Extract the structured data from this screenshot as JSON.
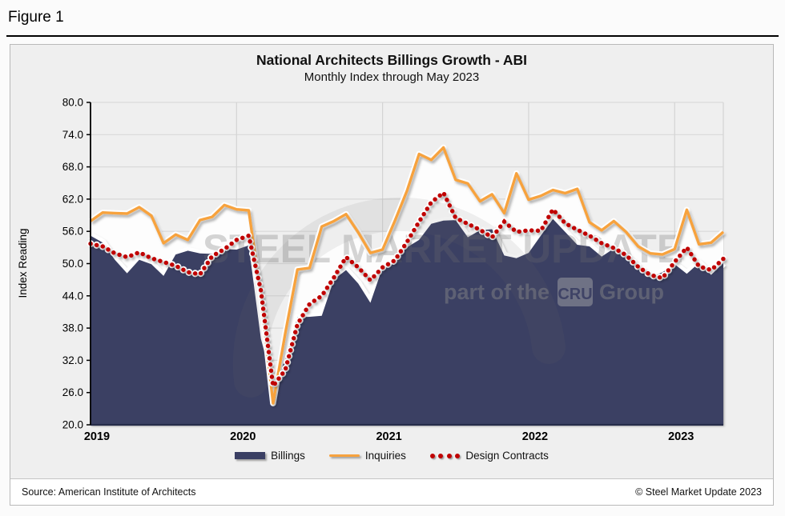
{
  "figure_label": "Figure 1",
  "chart": {
    "title": "National Architects Billings Growth - ABI",
    "subtitle": "Monthly Index through May 2023"
  },
  "chart_data": {
    "type": "area",
    "x_start": "Jan 2019",
    "x_end": "May 2023",
    "points_per_series": 53,
    "year_ticks": [
      "2019",
      "2020",
      "2021",
      "2022",
      "2023"
    ],
    "ylabel": "Index Reading",
    "ylim": [
      20,
      80
    ],
    "ytick_step": 6,
    "reference_line": 50,
    "grid": "on",
    "legend_position": "bottom",
    "series": [
      {
        "name": "Billings",
        "style": "area",
        "color": "#3a3f63",
        "values": [
          55.2,
          53.9,
          50.7,
          48.2,
          50.7,
          49.9,
          47.7,
          51.7,
          52.4,
          51.9,
          51.8,
          52.7,
          52.6,
          53.4,
          36.0,
          27.5,
          32.0,
          40.0,
          40.1,
          40.3,
          47.0,
          48.8,
          46.3,
          42.7,
          49.3,
          50.7,
          53.0,
          54.4,
          57.4,
          58.0,
          58.1,
          54.9,
          56.2,
          56.4,
          51.5,
          51.0,
          52.0,
          55.2,
          58.3,
          55.9,
          53.5,
          53.2,
          51.3,
          52.8,
          51.5,
          49.2,
          47.4,
          48.4,
          49.9,
          48.1,
          50.1,
          47.9,
          50.1
        ]
      },
      {
        "name": "Inquiries",
        "style": "line",
        "color": "#f7a23e",
        "area_fill": "#ffffff",
        "values": [
          57.9,
          59.5,
          59.4,
          59.3,
          60.5,
          58.9,
          53.8,
          55.4,
          54.4,
          58.1,
          58.7,
          60.9,
          60.1,
          59.9,
          44.0,
          24.0,
          37.0,
          48.9,
          49.2,
          56.9,
          57.9,
          59.2,
          55.8,
          52.0,
          52.6,
          57.9,
          63.5,
          70.4,
          69.3,
          71.6,
          65.6,
          64.9,
          61.6,
          62.9,
          59.4,
          66.8,
          61.9,
          62.6,
          63.7,
          63.1,
          63.9,
          57.7,
          56.2,
          57.9,
          55.9,
          53.2,
          51.9,
          51.7,
          52.7,
          60.0,
          53.6,
          53.9,
          55.9
        ]
      },
      {
        "name": "Design Contracts",
        "style": "dotted-line",
        "color": "#c00000",
        "values": [
          53.7,
          53.2,
          51.9,
          51.2,
          52.1,
          51.0,
          50.3,
          49.6,
          48.4,
          48.0,
          51.4,
          52.7,
          54.4,
          55.2,
          45.0,
          27.2,
          30.2,
          38.7,
          42.5,
          44.0,
          47.4,
          51.2,
          49.3,
          46.9,
          49.3,
          50.6,
          54.0,
          57.8,
          61.4,
          63.2,
          58.5,
          57.4,
          56.3,
          54.9,
          57.8,
          55.9,
          56.2,
          56.1,
          60.1,
          57.5,
          56.3,
          55.2,
          53.8,
          52.9,
          51.6,
          49.4,
          47.9,
          47.3,
          50.3,
          53.0,
          49.5,
          48.8,
          50.9
        ]
      }
    ]
  },
  "legend": {
    "items": [
      {
        "label": "Billings"
      },
      {
        "label": "Inquiries"
      },
      {
        "label": "Design Contracts"
      }
    ]
  },
  "watermark": {
    "line1": "STEEL MARKET UPDATE",
    "line2_prefix": "part of the",
    "line2_box": "CRU",
    "line2_suffix": "Group"
  },
  "footer": {
    "source": "Source: American Institute of Architects",
    "copyright": "© Steel Market Update 2023"
  },
  "colors": {
    "billings": "#3a3f63",
    "inquiries": "#f7a23e",
    "design_contracts": "#c00000",
    "reference_line": "#ffffff",
    "gridline": "#d9d9d9"
  }
}
